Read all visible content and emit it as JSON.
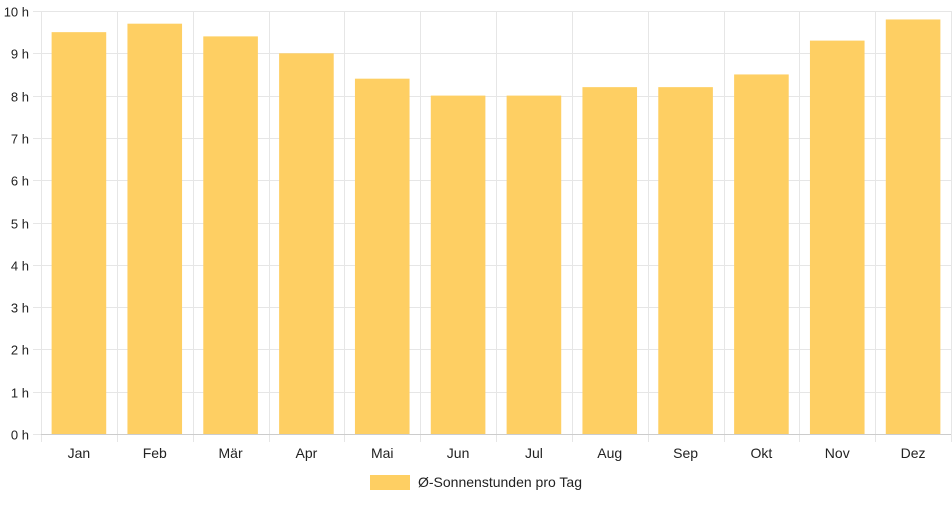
{
  "chart_data": {
    "type": "bar",
    "categories": [
      "Jan",
      "Feb",
      "Mär",
      "Apr",
      "Mai",
      "Jun",
      "Jul",
      "Aug",
      "Sep",
      "Okt",
      "Nov",
      "Dez"
    ],
    "series": [
      {
        "name": "Ø-Sonnenstunden pro Tag",
        "values": [
          9.5,
          9.7,
          9.4,
          9.0,
          8.4,
          8.0,
          8.0,
          8.2,
          8.2,
          8.5,
          9.3,
          9.8
        ]
      }
    ],
    "ylim": [
      0,
      10
    ],
    "y_ticks": [
      0,
      1,
      2,
      3,
      4,
      5,
      6,
      7,
      8,
      9,
      10
    ],
    "y_tick_labels": [
      "0 h",
      "1 h",
      "2 h",
      "3 h",
      "4 h",
      "5 h",
      "6 h",
      "7 h",
      "8 h",
      "9 h",
      "10 h"
    ],
    "grid": true,
    "legend_position": "bottom",
    "colors": {
      "bar": "#fecf63",
      "grid": "#e6e6e6",
      "axis": "#cccccc",
      "text": "#222222"
    }
  }
}
